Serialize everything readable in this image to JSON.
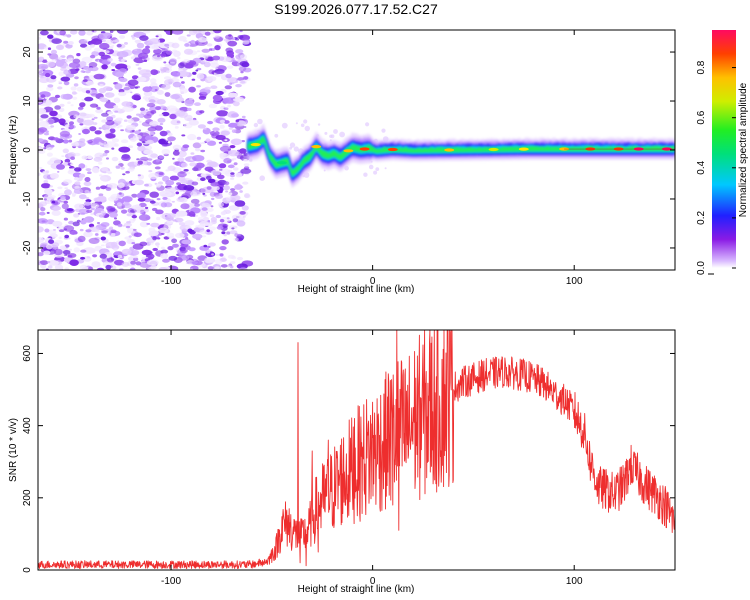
{
  "page": {
    "title": "S199.2026.077.17.52.C27"
  },
  "chart_data": [
    {
      "type": "heatmap",
      "xlabel": "Height of straight line (km)",
      "ylabel": "Frequency (Hz)",
      "xlim": [
        -166,
        150
      ],
      "ylim": [
        -24.5,
        24.5
      ],
      "x_ticks": [
        -100,
        0,
        100
      ],
      "x_tick_labels": [
        "-100",
        "0",
        "100"
      ],
      "y_ticks": [
        -20,
        -10,
        0,
        10,
        20
      ],
      "y_tick_labels": [
        "-20",
        "-10",
        "0",
        "10",
        "20"
      ],
      "noise_region_x": [
        -166,
        -62
      ],
      "signal_track": [
        {
          "x": -61,
          "f": 0.8
        },
        {
          "x": -57,
          "f": 1.2
        },
        {
          "x": -54,
          "f": 2.3
        },
        {
          "x": -51,
          "f": -1.3
        },
        {
          "x": -48,
          "f": -3.0
        },
        {
          "x": -45,
          "f": -2.6
        },
        {
          "x": -42,
          "f": -2.3
        },
        {
          "x": -40,
          "f": -4.8
        },
        {
          "x": -37,
          "f": -3.8
        },
        {
          "x": -34,
          "f": -2.2
        },
        {
          "x": -31,
          "f": -1.4
        },
        {
          "x": -28,
          "f": 0.7
        },
        {
          "x": -25,
          "f": -0.8
        },
        {
          "x": -22,
          "f": -1.2
        },
        {
          "x": -19,
          "f": -0.7
        },
        {
          "x": -16,
          "f": -1.5
        },
        {
          "x": -13,
          "f": -0.5
        },
        {
          "x": -10,
          "f": 0.5
        },
        {
          "x": -6,
          "f": 0.1
        },
        {
          "x": -2,
          "f": 0.3
        },
        {
          "x": 2,
          "f": -0.2
        },
        {
          "x": 10,
          "f": 0.1
        },
        {
          "x": 20,
          "f": -0.1
        },
        {
          "x": 40,
          "f": 0.0
        },
        {
          "x": 60,
          "f": 0.1
        },
        {
          "x": 80,
          "f": 0.2
        },
        {
          "x": 100,
          "f": 0.2
        },
        {
          "x": 120,
          "f": 0.2
        },
        {
          "x": 150,
          "f": 0.2
        }
      ],
      "colorbar": {
        "label": "Normalized spectral amplitude",
        "range": [
          0.0,
          0.95
        ],
        "ticks": [
          0.0,
          0.2,
          0.4,
          0.6,
          0.8
        ],
        "tick_labels": [
          "0.0",
          "0.2",
          "0.4",
          "0.6",
          "0.8"
        ]
      }
    },
    {
      "type": "line",
      "xlabel": "Height of straight line (km)",
      "ylabel": "SNR (10 * v/v)",
      "xlim": [
        -166,
        150
      ],
      "ylim": [
        0,
        665
      ],
      "x_ticks": [
        -100,
        0,
        100
      ],
      "x_tick_labels": [
        "-100",
        "0",
        "100"
      ],
      "y_ticks": [
        0,
        200,
        400,
        600
      ],
      "y_tick_labels": [
        "0",
        "200",
        "400",
        "600"
      ],
      "series": [
        {
          "name": "SNR",
          "color": "#ee2e2e",
          "envelope": [
            {
              "x": -166,
              "y": 15
            },
            {
              "x": -100,
              "y": 15
            },
            {
              "x": -60,
              "y": 15
            },
            {
              "x": -52,
              "y": 25
            },
            {
              "x": -48,
              "y": 60
            },
            {
              "x": -45,
              "y": 120
            },
            {
              "x": -42,
              "y": 130
            },
            {
              "x": -40,
              "y": 110
            },
            {
              "x": -36,
              "y": 90
            },
            {
              "x": -32,
              "y": 110
            },
            {
              "x": -28,
              "y": 170
            },
            {
              "x": -24,
              "y": 200
            },
            {
              "x": -20,
              "y": 220
            },
            {
              "x": -16,
              "y": 250
            },
            {
              "x": -12,
              "y": 270
            },
            {
              "x": -8,
              "y": 290
            },
            {
              "x": -4,
              "y": 310
            },
            {
              "x": 0,
              "y": 330
            },
            {
              "x": 4,
              "y": 345
            },
            {
              "x": 8,
              "y": 360
            },
            {
              "x": 12,
              "y": 390
            },
            {
              "x": 16,
              "y": 380
            },
            {
              "x": 20,
              "y": 410
            },
            {
              "x": 25,
              "y": 430
            },
            {
              "x": 30,
              "y": 460
            },
            {
              "x": 35,
              "y": 480
            },
            {
              "x": 40,
              "y": 505
            },
            {
              "x": 45,
              "y": 520
            },
            {
              "x": 50,
              "y": 530
            },
            {
              "x": 55,
              "y": 540
            },
            {
              "x": 60,
              "y": 545
            },
            {
              "x": 65,
              "y": 550
            },
            {
              "x": 70,
              "y": 545
            },
            {
              "x": 75,
              "y": 540
            },
            {
              "x": 80,
              "y": 530
            },
            {
              "x": 85,
              "y": 515
            },
            {
              "x": 90,
              "y": 490
            },
            {
              "x": 95,
              "y": 470
            },
            {
              "x": 100,
              "y": 440
            },
            {
              "x": 105,
              "y": 380
            },
            {
              "x": 108,
              "y": 300
            },
            {
              "x": 112,
              "y": 230
            },
            {
              "x": 116,
              "y": 220
            },
            {
              "x": 120,
              "y": 210
            },
            {
              "x": 125,
              "y": 240
            },
            {
              "x": 128,
              "y": 290
            },
            {
              "x": 132,
              "y": 260
            },
            {
              "x": 136,
              "y": 230
            },
            {
              "x": 140,
              "y": 210
            },
            {
              "x": 145,
              "y": 180
            },
            {
              "x": 150,
              "y": 130
            }
          ],
          "spikes": [
            {
              "x": -37,
              "y": 630
            },
            {
              "x": -36,
              "y": 20
            },
            {
              "x": -33,
              "y": 12
            },
            {
              "x": -30,
              "y": 330
            },
            {
              "x": -27,
              "y": 50
            },
            {
              "x": -22,
              "y": 360
            },
            {
              "x": -9,
              "y": 420
            },
            {
              "x": 8,
              "y": 520
            },
            {
              "x": 10,
              "y": 180
            },
            {
              "x": 12,
              "y": 665
            },
            {
              "x": 13,
              "y": 110
            }
          ]
        }
      ]
    }
  ]
}
